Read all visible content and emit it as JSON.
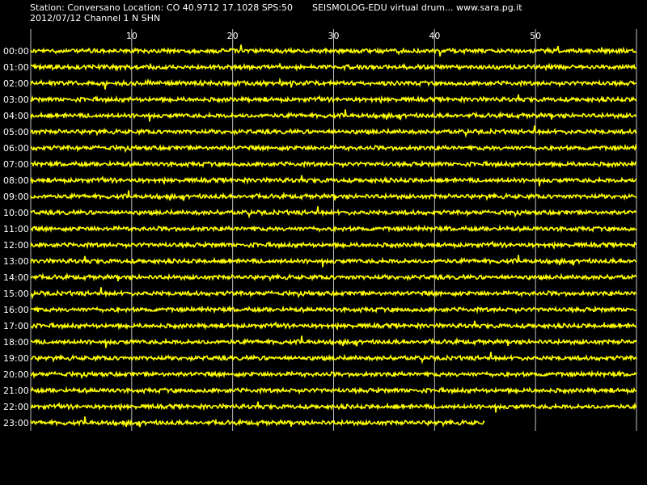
{
  "header": {
    "station_line": "Station: Conversano Location: CO 40.9712 17.1028 SPS:50",
    "brand_line": "SEISMOLOG-EDU virtual drum... www.sara.pg.it",
    "date_line": "2012/07/12  Channel 1 N SHN"
  },
  "drum": {
    "minute_ticks": [
      "10",
      "20",
      "30",
      "40",
      "50"
    ],
    "minute_values": [
      10,
      20,
      30,
      40,
      50
    ],
    "minutes_per_row": 60,
    "hours": [
      "00:00",
      "01:00",
      "02:00",
      "03:00",
      "04:00",
      "05:00",
      "06:00",
      "07:00",
      "08:00",
      "09:00",
      "10:00",
      "11:00",
      "12:00",
      "13:00",
      "14:00",
      "15:00",
      "16:00",
      "17:00",
      "18:00",
      "19:00",
      "20:00",
      "21:00",
      "22:00",
      "23:00"
    ],
    "last_row_minutes": 45,
    "colors": {
      "background": "#000000",
      "trace": "#ffff00",
      "grid": "#ffffff",
      "text": "#ffffff"
    }
  }
}
